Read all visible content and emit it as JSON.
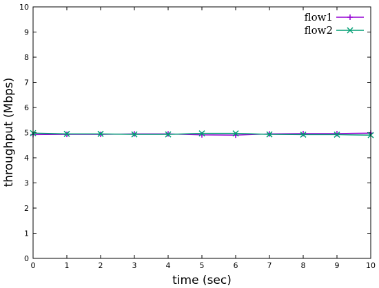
{
  "chart_data": {
    "type": "line",
    "xlabel": "time (sec)",
    "ylabel": "throughput (Mbps)",
    "xlim": [
      0,
      10
    ],
    "ylim": [
      0,
      10
    ],
    "x_ticks": [
      "0",
      "1",
      "2",
      "3",
      "4",
      "5",
      "6",
      "7",
      "8",
      "9",
      "10"
    ],
    "y_ticks": [
      "0",
      "1",
      "2",
      "3",
      "4",
      "5",
      "6",
      "7",
      "8",
      "9",
      "10"
    ],
    "grid": false,
    "legend_position": "top-right",
    "series": [
      {
        "name": "flow1",
        "color": "#9400D3",
        "marker": "plus",
        "x": [
          0,
          1,
          2,
          3,
          4,
          5,
          6,
          7,
          8,
          9,
          10
        ],
        "y": [
          4.92,
          4.93,
          4.93,
          4.95,
          4.95,
          4.91,
          4.9,
          4.95,
          4.96,
          4.96,
          4.98
        ]
      },
      {
        "name": "flow2",
        "color": "#009E73",
        "marker": "x",
        "x": [
          0,
          1,
          2,
          3,
          4,
          5,
          6,
          7,
          8,
          9,
          10
        ],
        "y": [
          4.98,
          4.95,
          4.95,
          4.93,
          4.93,
          4.97,
          4.97,
          4.93,
          4.92,
          4.92,
          4.9
        ]
      }
    ]
  }
}
